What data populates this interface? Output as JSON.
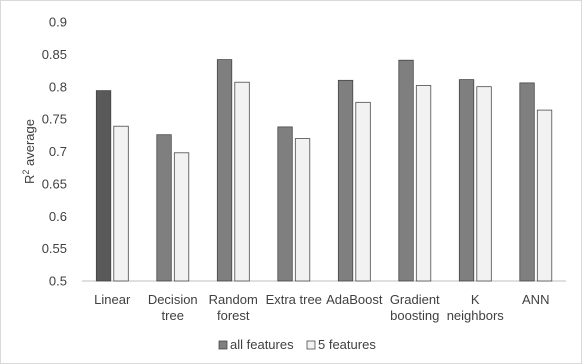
{
  "chart_data": {
    "type": "bar",
    "title": "",
    "xlabel": "",
    "ylabel_main": "R",
    "ylabel_sup": "2",
    "ylabel_rest": " average",
    "ylim": [
      0.5,
      0.9
    ],
    "ytick_step": 0.05,
    "yticks": [
      "0.5",
      "0.55",
      "0.6",
      "0.65",
      "0.7",
      "0.75",
      "0.8",
      "0.85",
      "0.9"
    ],
    "grid": false,
    "legend_position": "bottom",
    "categories": [
      [
        "Linear"
      ],
      [
        "Decision",
        "tree"
      ],
      [
        "Random",
        "forest"
      ],
      [
        "Extra tree"
      ],
      [
        "AdaBoost"
      ],
      [
        "Gradient",
        "boosting"
      ],
      [
        "K",
        "neighbors"
      ],
      [
        "ANN"
      ]
    ],
    "series": [
      {
        "name": "all features",
        "color": "#7f7f7f",
        "values": [
          0.794,
          0.726,
          0.842,
          0.738,
          0.81,
          0.841,
          0.811,
          0.806
        ]
      },
      {
        "name": "5 features",
        "color": "#f2f2f2",
        "values": [
          0.739,
          0.698,
          0.807,
          0.72,
          0.776,
          0.802,
          0.8,
          0.764
        ]
      }
    ],
    "highlight": {
      "series_index": 0,
      "category_index": 0,
      "color": "#595959"
    }
  }
}
